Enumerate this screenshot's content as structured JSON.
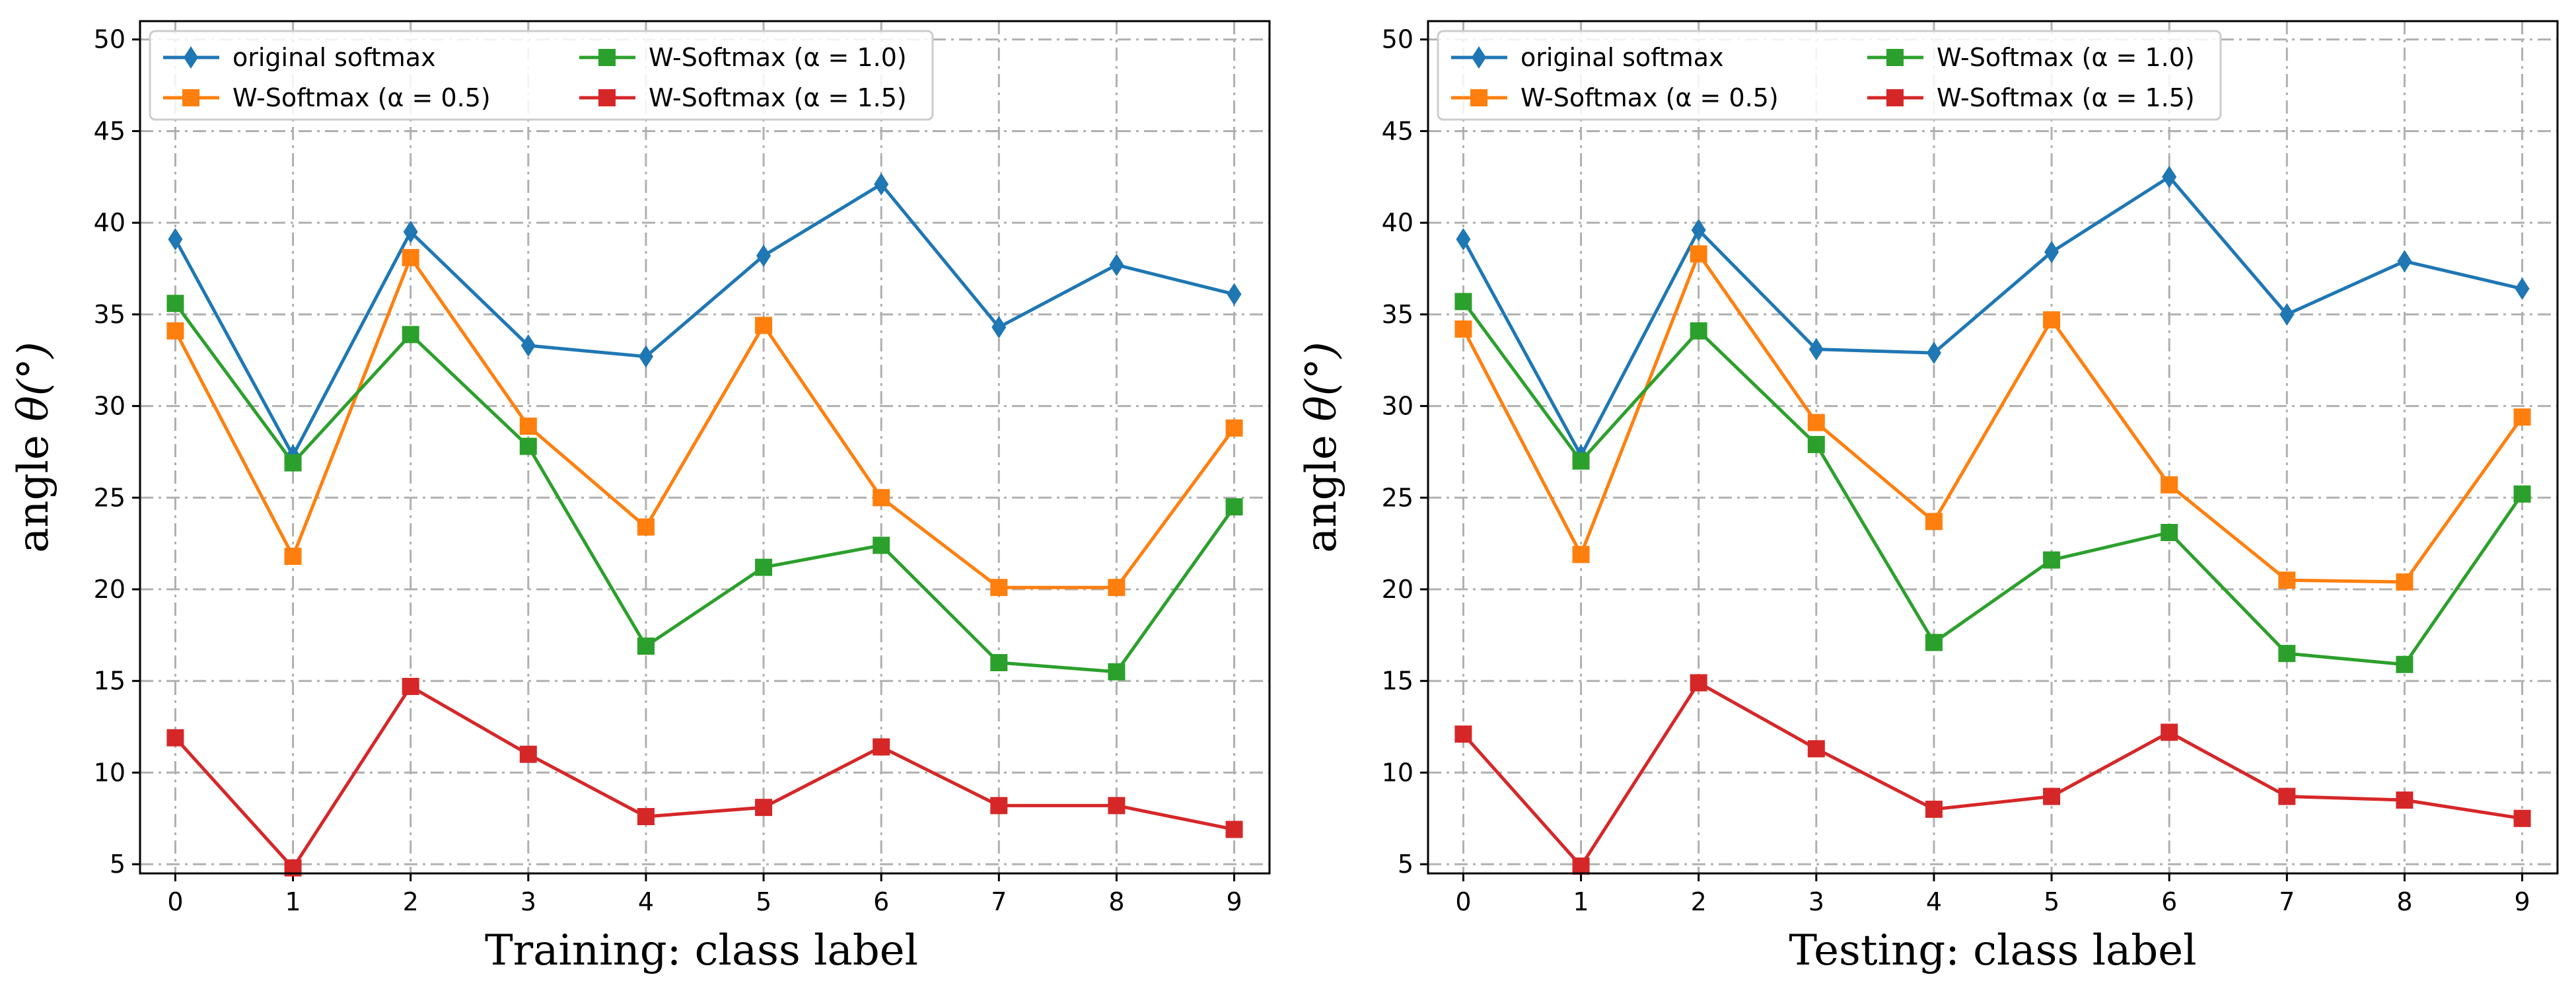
{
  "chart_data": [
    {
      "type": "line",
      "xlabel": "Training: class label",
      "ylabel_prefix": "angle ",
      "ylabel_symbol": "θ(°)",
      "x": [
        0,
        1,
        2,
        3,
        4,
        5,
        6,
        7,
        8,
        9
      ],
      "xticks": [
        "0",
        "1",
        "2",
        "3",
        "4",
        "5",
        "6",
        "7",
        "8",
        "9"
      ],
      "yticks": [
        "5",
        "10",
        "15",
        "20",
        "25",
        "30",
        "35",
        "40",
        "45",
        "50"
      ],
      "ylim": [
        4.5,
        51
      ],
      "grid": true,
      "legend_position": "top-left",
      "series": [
        {
          "name": "original softmax",
          "marker": "diamond",
          "color": "#1f77b4",
          "values": [
            39.1,
            27.3,
            39.5,
            33.3,
            32.7,
            38.2,
            42.1,
            34.3,
            37.7,
            36.1
          ]
        },
        {
          "name": "W-Softmax (α = 0.5)",
          "marker": "square",
          "color": "#ff7f0e",
          "values": [
            34.1,
            21.8,
            38.1,
            28.9,
            23.4,
            34.4,
            25.0,
            20.1,
            20.1,
            28.8
          ]
        },
        {
          "name": "W-Softmax (α = 1.0)",
          "marker": "square",
          "color": "#2ca02c",
          "values": [
            35.6,
            26.9,
            33.9,
            27.8,
            16.9,
            21.2,
            22.4,
            16.0,
            15.5,
            24.5
          ]
        },
        {
          "name": "W-Softmax (α = 1.5)",
          "marker": "square",
          "color": "#d62728",
          "values": [
            11.9,
            4.8,
            14.7,
            11.0,
            7.6,
            8.1,
            11.4,
            8.2,
            8.2,
            6.9
          ]
        }
      ]
    },
    {
      "type": "line",
      "xlabel": "Testing: class label",
      "ylabel_prefix": "angle ",
      "ylabel_symbol": "θ(°)",
      "x": [
        0,
        1,
        2,
        3,
        4,
        5,
        6,
        7,
        8,
        9
      ],
      "xticks": [
        "0",
        "1",
        "2",
        "3",
        "4",
        "5",
        "6",
        "7",
        "8",
        "9"
      ],
      "yticks": [
        "5",
        "10",
        "15",
        "20",
        "25",
        "30",
        "35",
        "40",
        "45",
        "50"
      ],
      "ylim": [
        4.5,
        51
      ],
      "grid": true,
      "legend_position": "top-left",
      "series": [
        {
          "name": "original softmax",
          "marker": "diamond",
          "color": "#1f77b4",
          "values": [
            39.1,
            27.3,
            39.6,
            33.1,
            32.9,
            38.4,
            42.5,
            35.0,
            37.9,
            36.4
          ]
        },
        {
          "name": "W-Softmax (α = 0.5)",
          "marker": "square",
          "color": "#ff7f0e",
          "values": [
            34.2,
            21.9,
            38.3,
            29.1,
            23.7,
            34.7,
            25.7,
            20.5,
            20.4,
            29.4
          ]
        },
        {
          "name": "W-Softmax (α = 1.0)",
          "marker": "square",
          "color": "#2ca02c",
          "values": [
            35.7,
            27.0,
            34.1,
            27.9,
            17.1,
            21.6,
            23.1,
            16.5,
            15.9,
            25.2
          ]
        },
        {
          "name": "W-Softmax (α = 1.5)",
          "marker": "square",
          "color": "#d62728",
          "values": [
            12.1,
            4.9,
            14.9,
            11.3,
            8.0,
            8.7,
            12.2,
            8.7,
            8.5,
            7.5
          ]
        }
      ]
    }
  ]
}
